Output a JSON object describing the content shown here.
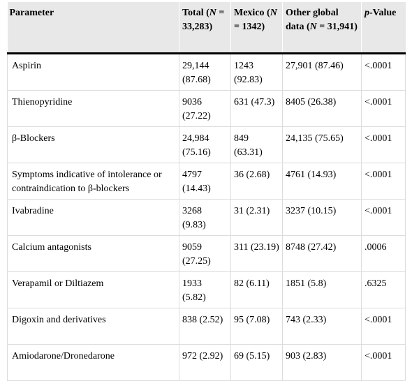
{
  "table": {
    "headers": [
      {
        "pre": "Parameter",
        "ital": "",
        "post": ""
      },
      {
        "pre": "Total (",
        "ital": "N",
        "post": " = 33,283)"
      },
      {
        "pre": "Mexico (",
        "ital": "N",
        "post": " = 1342)"
      },
      {
        "pre": "Other global data (",
        "ital": "N",
        "post": " = 31,941)"
      },
      {
        "pre": "",
        "ital": "p",
        "post": "-Value"
      }
    ],
    "rows": [
      [
        "Aspirin",
        "29,144 (87.68)",
        "1243 (92.83)",
        "27,901 (87.46)",
        "<.0001"
      ],
      [
        "Thienopyridine",
        "9036 (27.22)",
        "631 (47.3)",
        "8405 (26.38)",
        "<.0001"
      ],
      [
        "β-Blockers",
        "24,984 (75.16)",
        "849 (63.31)",
        "24,135 (75.65)",
        "<.0001"
      ],
      [
        "Symptoms indicative of intolerance or contraindication to β-blockers",
        "4797 (14.43)",
        "36 (2.68)",
        "4761 (14.93)",
        "<.0001"
      ],
      [
        "Ivabradine",
        "3268 (9.83)",
        "31 (2.31)",
        "3237 (10.15)",
        "<.0001"
      ],
      [
        "Calcium antagonists",
        "9059 (27.25)",
        "311 (23.19)",
        "8748 (27.42)",
        ".0006"
      ],
      [
        "Verapamil or Diltiazem",
        "1933 (5.82)",
        "82 (6.11)",
        "1851 (5.8)",
        ".6325"
      ],
      [
        "Digoxin and derivatives",
        "838 (2.52)",
        "95 (7.08)",
        "743 (2.33)",
        "<.0001"
      ],
      [
        "Amiodarone/Dronedarone",
        "972 (2.92)",
        "69 (5.15)",
        "903 (2.83)",
        "<.0001"
      ]
    ]
  }
}
